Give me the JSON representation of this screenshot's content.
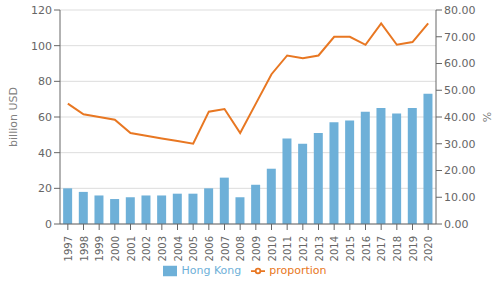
{
  "chart_data": {
    "type": "bar",
    "categories": [
      "1997",
      "1998",
      "1999",
      "2000",
      "2001",
      "2002",
      "2003",
      "2004",
      "2005",
      "2006",
      "2007",
      "2008",
      "2009",
      "2010",
      "2011",
      "2012",
      "2013",
      "2014",
      "2015",
      "2016",
      "2017",
      "2018",
      "2019",
      "2020"
    ],
    "series": [
      {
        "name": "Hong Kong",
        "type": "bar",
        "color": "#6EB0D8",
        "values": [
          20,
          18,
          16,
          14,
          15,
          16,
          16,
          17,
          17,
          20,
          26,
          15,
          22,
          31,
          48,
          45,
          51,
          57,
          58,
          63,
          65,
          62,
          65,
          73
        ]
      },
      {
        "name": "proportion",
        "type": "line",
        "color": "#E87722",
        "axis": "y2",
        "values": [
          45,
          41,
          40,
          39,
          34,
          33,
          32,
          31,
          30,
          42,
          43,
          34,
          45,
          56,
          63,
          62,
          63,
          70,
          70,
          67,
          75,
          67,
          68,
          75
        ]
      }
    ],
    "ylabel": "billion USD",
    "y2label": "%",
    "ylim": [
      0,
      120
    ],
    "yticks": [
      0,
      20,
      40,
      60,
      80,
      100,
      120
    ],
    "y2lim": [
      0,
      80
    ],
    "y2ticks": [
      {
        "value": 0,
        "label": "0.00"
      },
      {
        "value": 10,
        "label": "10.00"
      },
      {
        "value": 20,
        "label": "20.00"
      },
      {
        "value": 30,
        "label": "30.00"
      },
      {
        "value": 40,
        "label": "40.00"
      },
      {
        "value": 50,
        "label": "50.00"
      },
      {
        "value": 60,
        "label": "60.00"
      },
      {
        "value": 70,
        "label": "70.00"
      },
      {
        "value": 80,
        "label": "80.00"
      }
    ],
    "grid": true,
    "legend": "bottom"
  }
}
